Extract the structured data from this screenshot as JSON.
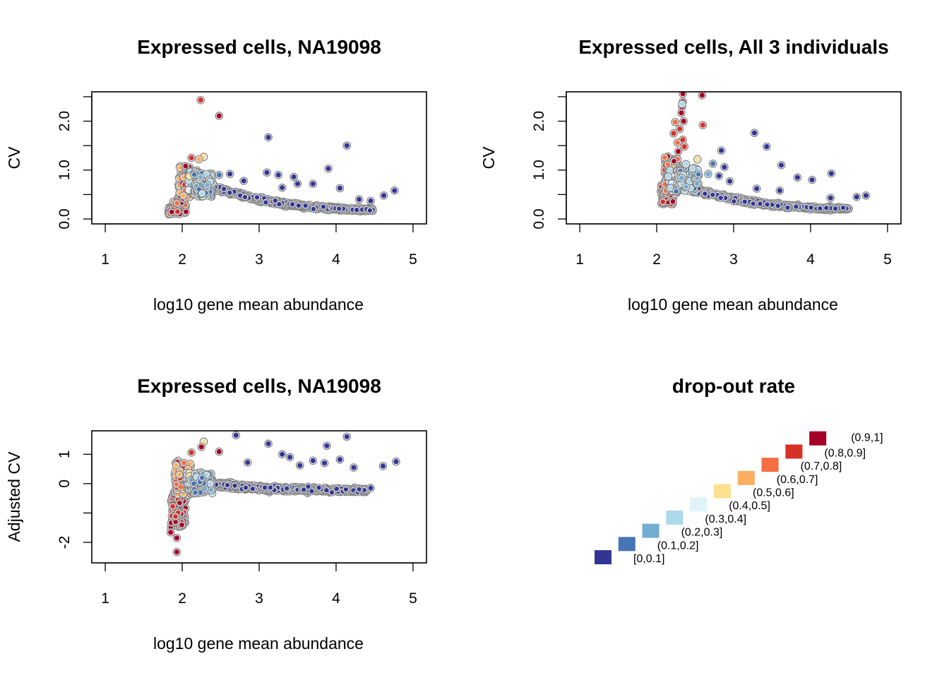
{
  "colors": {
    "bins": [
      "#313695",
      "#4575b4",
      "#74add1",
      "#abd9e9",
      "#e0f3f8",
      "#fee090",
      "#fdae61",
      "#f46d43",
      "#d73027",
      "#a50026"
    ],
    "outline": "#888888"
  },
  "chart_data": [
    {
      "type": "scatter",
      "title": "Expressed cells, NA19098",
      "xlabel": "log10 gene mean abundance",
      "ylabel": "CV",
      "xlim": [
        1,
        5
      ],
      "ylim": [
        0,
        2.5
      ],
      "xticks": [
        "1",
        "2",
        "3",
        "4",
        "5"
      ],
      "xtick_values": [
        1,
        2,
        3,
        4,
        5
      ],
      "yticks": [
        "0.0",
        "1.0",
        "2.0"
      ],
      "ytick_values": [
        0,
        1,
        2
      ],
      "yminor_ticks": [
        0.5,
        1.5,
        2.5
      ],
      "grid": false,
      "legend": "none",
      "points": [
        [
          2.24,
          2.43,
          8
        ],
        [
          2.48,
          2.11,
          9
        ],
        [
          2.28,
          1.27,
          5
        ],
        [
          2.22,
          1.22,
          6
        ],
        [
          2.12,
          1.25,
          8
        ],
        [
          3.12,
          1.67,
          0
        ],
        [
          4.14,
          1.5,
          0
        ],
        [
          3.9,
          1.03,
          0
        ],
        [
          4.76,
          0.58,
          0
        ],
        [
          4.62,
          0.48,
          0
        ],
        [
          3.1,
          0.95,
          0
        ],
        [
          3.25,
          0.9,
          0
        ],
        [
          2.62,
          0.92,
          0
        ],
        [
          2.48,
          0.9,
          1
        ],
        [
          3.45,
          0.86,
          0
        ],
        [
          3.3,
          0.64,
          0
        ],
        [
          3.5,
          0.72,
          0
        ],
        [
          3.7,
          0.72,
          0
        ],
        [
          4.05,
          0.63,
          0
        ],
        [
          2.8,
          0.78,
          0
        ],
        [
          4.45,
          0.37,
          0
        ],
        [
          4.3,
          0.4,
          0
        ]
      ],
      "clouds": [
        {
          "x": [
            1.82,
            2.05
          ],
          "y": [
            0.06,
            0.5
          ],
          "n": 130,
          "bins": [
            7,
            8,
            9
          ],
          "rise": 1.35
        },
        {
          "x": [
            1.95,
            2.12
          ],
          "y": [
            0.4,
            1.1
          ],
          "n": 80,
          "bins": [
            6,
            7,
            8,
            9
          ],
          "rise": 0.0
        },
        {
          "x": [
            2.08,
            2.22
          ],
          "y": [
            0.5,
            1.0
          ],
          "n": 60,
          "bins": [
            2,
            3,
            4,
            5
          ],
          "rise": 0.0
        },
        {
          "x": [
            2.15,
            2.4
          ],
          "y": [
            0.45,
            0.95
          ],
          "n": 80,
          "bins": [
            1,
            2,
            3
          ],
          "rise": 0.0
        }
      ],
      "trend": {
        "start": [
          2.25,
          0.7
        ],
        "end": [
          4.48,
          0.18
        ],
        "n": 700,
        "spread": 0.09,
        "bin": 0
      }
    },
    {
      "type": "scatter",
      "title": "Expressed cells, All 3 individuals",
      "xlabel": "log10 gene mean abundance",
      "ylabel": "CV",
      "xlim": [
        1,
        5
      ],
      "ylim": [
        0,
        2.5
      ],
      "xticks": [
        "1",
        "2",
        "3",
        "4",
        "5"
      ],
      "xtick_values": [
        1,
        2,
        3,
        4,
        5
      ],
      "yticks": [
        "0.0",
        "1.0",
        "2.0"
      ],
      "ytick_values": [
        0,
        1,
        2
      ],
      "yminor_ticks": [
        0.5,
        1.5,
        2.5
      ],
      "grid": false,
      "legend": "none",
      "points": [
        [
          2.34,
          2.56,
          9
        ],
        [
          2.59,
          2.53,
          9
        ],
        [
          2.34,
          2.4,
          9
        ],
        [
          2.33,
          2.29,
          9
        ],
        [
          2.32,
          2.17,
          9
        ],
        [
          2.35,
          2.0,
          9
        ],
        [
          2.24,
          1.98,
          7
        ],
        [
          2.6,
          1.92,
          8
        ],
        [
          2.3,
          1.84,
          8
        ],
        [
          2.22,
          1.75,
          8
        ],
        [
          2.34,
          1.62,
          8
        ],
        [
          2.36,
          1.48,
          8
        ],
        [
          2.33,
          2.35,
          3
        ],
        [
          2.27,
          1.56,
          7
        ],
        [
          2.28,
          1.38,
          9
        ],
        [
          2.53,
          1.22,
          5
        ],
        [
          2.38,
          1.12,
          3
        ],
        [
          3.27,
          1.76,
          0
        ],
        [
          3.43,
          1.48,
          0
        ],
        [
          2.84,
          1.4,
          0
        ],
        [
          3.62,
          1.1,
          0
        ],
        [
          4.27,
          0.93,
          0
        ],
        [
          3.83,
          0.85,
          0
        ],
        [
          4.02,
          0.8,
          0
        ],
        [
          2.73,
          1.13,
          1
        ],
        [
          2.88,
          1.06,
          0
        ],
        [
          4.72,
          0.48,
          0
        ],
        [
          4.6,
          0.45,
          0
        ],
        [
          4.26,
          0.43,
          0
        ],
        [
          3.3,
          0.62,
          0
        ],
        [
          3.6,
          0.58,
          0
        ],
        [
          2.67,
          0.92,
          2
        ],
        [
          2.81,
          0.88,
          0
        ],
        [
          2.95,
          0.77,
          0
        ]
      ],
      "clouds": [
        {
          "x": [
            2.05,
            2.22
          ],
          "y": [
            0.3,
            0.7
          ],
          "n": 120,
          "bins": [
            8,
            9
          ],
          "rise": 0.0
        },
        {
          "x": [
            2.1,
            2.3
          ],
          "y": [
            0.5,
            1.3
          ],
          "n": 80,
          "bins": [
            6,
            7,
            8,
            9
          ],
          "rise": 0.0
        },
        {
          "x": [
            2.15,
            2.32
          ],
          "y": [
            0.55,
            1.0
          ],
          "n": 60,
          "bins": [
            3,
            4,
            5
          ],
          "rise": 0.0
        },
        {
          "x": [
            2.25,
            2.55
          ],
          "y": [
            0.55,
            1.05
          ],
          "n": 80,
          "bins": [
            1,
            2,
            3
          ],
          "rise": 0.0
        }
      ],
      "trend": {
        "start": [
          2.4,
          0.62
        ],
        "end": [
          4.5,
          0.2
        ],
        "n": 650,
        "spread": 0.08,
        "bin": 0
      }
    },
    {
      "type": "scatter",
      "title": "Expressed cells, NA19098",
      "xlabel": "log10 gene mean abundance",
      "ylabel": "Adjusted CV",
      "xlim": [
        1,
        5
      ],
      "ylim": [
        -2.5,
        1.5
      ],
      "xticks": [
        "1",
        "2",
        "3",
        "4",
        "5"
      ],
      "xtick_values": [
        1,
        2,
        3,
        4,
        5
      ],
      "yticks": [
        "-2",
        "0",
        "1"
      ],
      "ytick_values": [
        -2,
        0,
        1
      ],
      "yminor_ticks": [
        -1
      ],
      "grid": false,
      "legend": "none",
      "points": [
        [
          2.7,
          1.65,
          0
        ],
        [
          2.28,
          1.43,
          5
        ],
        [
          2.25,
          1.25,
          9
        ],
        [
          2.48,
          1.09,
          9
        ],
        [
          2.12,
          1.06,
          8
        ],
        [
          3.12,
          1.36,
          0
        ],
        [
          4.14,
          1.6,
          0
        ],
        [
          3.88,
          1.29,
          0
        ],
        [
          3.3,
          1.0,
          0
        ],
        [
          3.4,
          0.9,
          0
        ],
        [
          3.7,
          0.78,
          0
        ],
        [
          3.85,
          0.7,
          0
        ],
        [
          4.05,
          0.82,
          0
        ],
        [
          4.23,
          0.55,
          0
        ],
        [
          4.78,
          0.75,
          0
        ],
        [
          4.61,
          0.6,
          0
        ],
        [
          2.85,
          0.72,
          0
        ],
        [
          3.53,
          0.62,
          0
        ],
        [
          1.93,
          -2.33,
          9
        ],
        [
          1.85,
          -1.66,
          9
        ],
        [
          1.93,
          -1.85,
          9
        ],
        [
          4.45,
          -0.15,
          0
        ]
      ],
      "clouds": [
        {
          "x": [
            1.85,
            2.05
          ],
          "y": [
            -1.5,
            -0.2
          ],
          "n": 110,
          "bins": [
            8,
            9
          ],
          "rise": 0.0
        },
        {
          "x": [
            1.9,
            2.12
          ],
          "y": [
            -0.4,
            0.8
          ],
          "n": 90,
          "bins": [
            6,
            7,
            8,
            9
          ],
          "rise": 0.0
        },
        {
          "x": [
            2.05,
            2.25
          ],
          "y": [
            -0.3,
            0.4
          ],
          "n": 60,
          "bins": [
            2,
            3,
            4,
            5
          ],
          "rise": 0.0
        },
        {
          "x": [
            2.15,
            2.4
          ],
          "y": [
            -0.35,
            0.35
          ],
          "n": 80,
          "bins": [
            1,
            2,
            3
          ],
          "rise": 0.0
        }
      ],
      "trend": {
        "start": [
          2.35,
          -0.05
        ],
        "end": [
          4.4,
          -0.25
        ],
        "n": 700,
        "spread": 0.16,
        "bin": 0
      }
    }
  ],
  "legend": {
    "title": "drop-out rate",
    "items": [
      "[0,0.1]",
      "(0.1,0.2]",
      "(0.2,0.3]",
      "(0.3,0.4]",
      "(0.4,0.5]",
      "(0.5,0.6]",
      "(0.6,0.7]",
      "(0.7,0.8]",
      "(0.8,0.9]",
      "(0.9,1]"
    ]
  }
}
